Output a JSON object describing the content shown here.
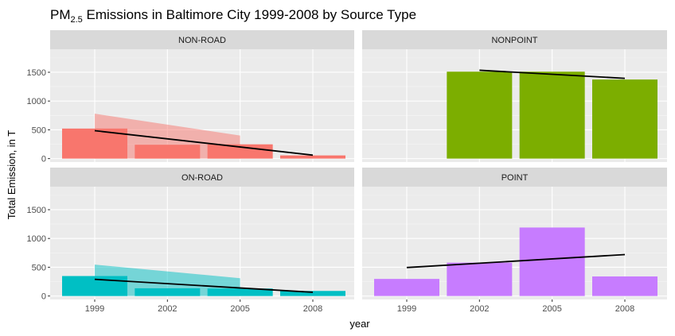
{
  "chart_data": {
    "type": "bar",
    "title_main": "PM",
    "title_sub": "2.5",
    "title_rest": " Emissions in Baltimore City 1999-2008 by Source Type",
    "xlabel": "year",
    "ylabel": "Total Emission, in T",
    "categories": [
      "1999",
      "2002",
      "2005",
      "2008"
    ],
    "y_ticks": [
      "0",
      "500",
      "1000",
      "1500"
    ],
    "ylim": [
      -60,
      1900
    ],
    "grid": true,
    "legend": "none",
    "panels": [
      {
        "name": "NON-ROAD",
        "color": "#F8766D",
        "values": [
          522,
          241,
          248,
          55
        ],
        "smooth_band": {
          "x": [
            1999,
            2005
          ],
          "upper": [
            780,
            400
          ],
          "lower": [
            0,
            0
          ]
        },
        "trend_line": {
          "x": [
            1999,
            2008
          ],
          "y": [
            485,
            60
          ]
        }
      },
      {
        "name": "NONPOINT",
        "color": "#7CAE00",
        "values": [
          null,
          1510,
          1510,
          1374
        ],
        "trend_line": {
          "x": [
            2002,
            2008
          ],
          "y": [
            1535,
            1395
          ]
        }
      },
      {
        "name": "ON-ROAD",
        "color": "#00BFC4",
        "values": [
          347,
          134,
          130,
          88
        ],
        "smooth_band": {
          "x": [
            1999,
            2005
          ],
          "upper": [
            545,
            310
          ],
          "lower": [
            0,
            0
          ]
        },
        "trend_line": {
          "x": [
            1999,
            2008
          ],
          "y": [
            290,
            65
          ]
        }
      },
      {
        "name": "POINT",
        "color": "#C77CFF",
        "values": [
          297,
          580,
          1190,
          340
        ],
        "trend_line": {
          "x": [
            1999,
            2008
          ],
          "y": [
            495,
            720
          ]
        }
      }
    ]
  }
}
